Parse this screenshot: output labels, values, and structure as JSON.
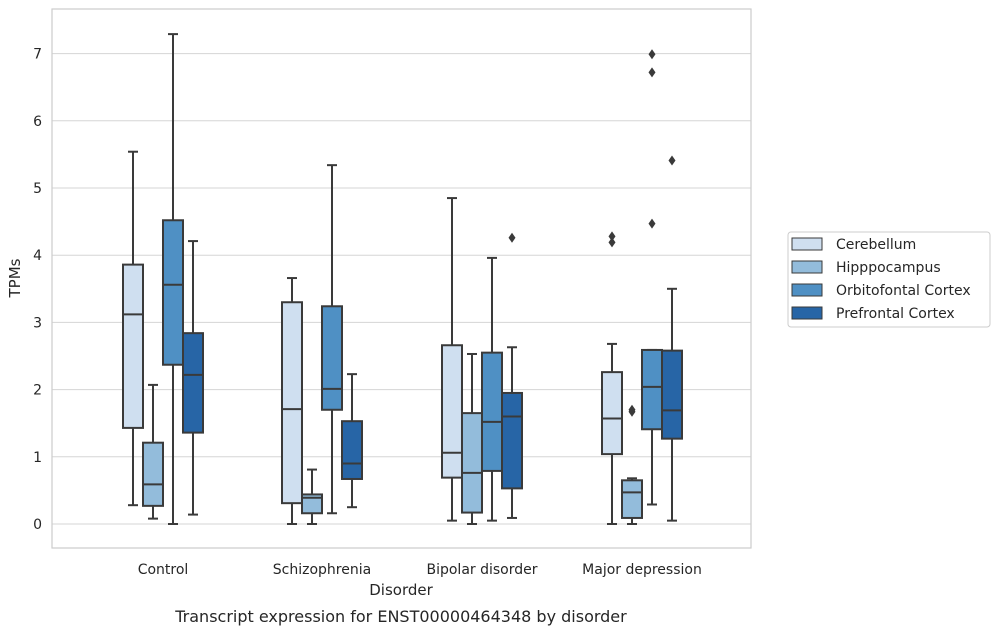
{
  "chart_data": {
    "type": "box",
    "caption": "Transcript expression for ENST00000464348 by disorder",
    "xlabel": "Disorder",
    "ylabel": "TPMs",
    "ylim": [
      -0.35,
      7.7
    ],
    "yticks": [
      0,
      1,
      2,
      3,
      4,
      5,
      6,
      7
    ],
    "grid": "horizontal",
    "legend_position": "right",
    "categories": [
      "Control",
      "Schizophrenia",
      "Bipolar disorder",
      "Major depression"
    ],
    "series": [
      {
        "name": "Cerebellum",
        "color": "#cfdff0",
        "boxes": [
          {
            "whisker_low": 0.28,
            "q1": 1.43,
            "median": 3.12,
            "q3": 3.86,
            "whisker_high": 5.54,
            "outliers": []
          },
          {
            "whisker_low": 0.0,
            "q1": 0.31,
            "median": 1.71,
            "q3": 3.3,
            "whisker_high": 3.66,
            "outliers": []
          },
          {
            "whisker_low": 0.05,
            "q1": 0.69,
            "median": 1.06,
            "q3": 2.66,
            "whisker_high": 4.85,
            "outliers": []
          },
          {
            "whisker_low": 0.0,
            "q1": 1.04,
            "median": 1.57,
            "q3": 2.26,
            "whisker_high": 2.68,
            "outliers": [
              4.19,
              4.28
            ]
          }
        ]
      },
      {
        "name": "Hipppocampus",
        "color": "#93bcdb",
        "boxes": [
          {
            "whisker_low": 0.08,
            "q1": 0.27,
            "median": 0.59,
            "q3": 1.21,
            "whisker_high": 2.07,
            "outliers": []
          },
          {
            "whisker_low": 0.0,
            "q1": 0.16,
            "median": 0.39,
            "q3": 0.44,
            "whisker_high": 0.81,
            "outliers": []
          },
          {
            "whisker_low": 0.0,
            "q1": 0.17,
            "median": 0.76,
            "q3": 1.65,
            "whisker_high": 2.53,
            "outliers": []
          },
          {
            "whisker_low": 0.0,
            "q1": 0.09,
            "median": 0.47,
            "q3": 0.65,
            "whisker_high": 0.68,
            "outliers": [
              1.67,
              1.7
            ]
          }
        ]
      },
      {
        "name": "Orbitofontal Cortex",
        "color": "#4f90c4",
        "boxes": [
          {
            "whisker_low": 0.0,
            "q1": 2.37,
            "median": 3.56,
            "q3": 4.52,
            "whisker_high": 7.29,
            "outliers": []
          },
          {
            "whisker_low": 0.16,
            "q1": 1.7,
            "median": 2.01,
            "q3": 3.24,
            "whisker_high": 5.34,
            "outliers": []
          },
          {
            "whisker_low": 0.05,
            "q1": 0.79,
            "median": 1.52,
            "q3": 2.55,
            "whisker_high": 3.96,
            "outliers": []
          },
          {
            "whisker_low": 0.29,
            "q1": 1.41,
            "median": 2.04,
            "q3": 2.59,
            "whisker_high": 2.59,
            "outliers": [
              4.47,
              6.72,
              6.99
            ]
          }
        ]
      },
      {
        "name": "Prefrontal Cortex",
        "color": "#2765a6",
        "boxes": [
          {
            "whisker_low": 0.14,
            "q1": 1.36,
            "median": 2.22,
            "q3": 2.84,
            "whisker_high": 4.21,
            "outliers": []
          },
          {
            "whisker_low": 0.25,
            "q1": 0.67,
            "median": 0.9,
            "q3": 1.53,
            "whisker_high": 2.23,
            "outliers": []
          },
          {
            "whisker_low": 0.09,
            "q1": 0.53,
            "median": 1.6,
            "q3": 1.95,
            "whisker_high": 2.63,
            "outliers": [
              4.26
            ]
          },
          {
            "whisker_low": 0.05,
            "q1": 1.27,
            "median": 1.69,
            "q3": 2.58,
            "whisker_high": 3.5,
            "outliers": [
              5.41
            ]
          }
        ]
      }
    ]
  }
}
